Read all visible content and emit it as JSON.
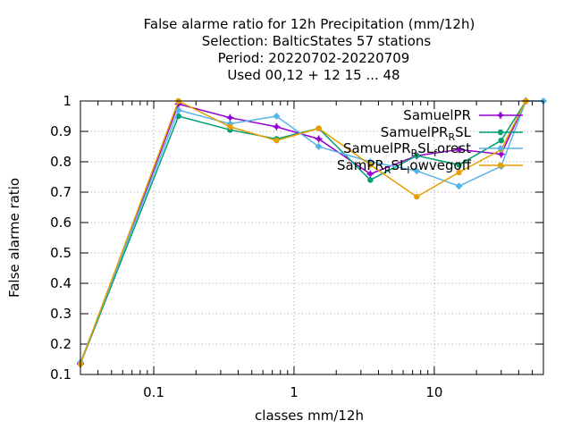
{
  "chart_data": {
    "type": "line",
    "title_lines": [
      "False alarme ratio  for 12h Precipitation (mm/12h)",
      "Selection: BalticStates     57 stations",
      "Period: 20220702-20220709",
      "Used  00,12  + 12 15 ... 48"
    ],
    "xlabel": "classes mm/12h",
    "ylabel": "False alarme ratio",
    "xscale": "log",
    "xlim": [
      0.03,
      60
    ],
    "ylim": [
      0.1,
      1.0
    ],
    "xticks": [
      0.1,
      1,
      10
    ],
    "xtick_labels": [
      "0.1",
      "1",
      "10"
    ],
    "yticks": [
      0.1,
      0.2,
      0.3,
      0.4,
      0.5,
      0.6,
      0.7,
      0.8,
      0.9,
      1.0
    ],
    "ytick_labels": [
      "0.1",
      "0.2",
      "0.3",
      "0.4",
      "0.5",
      "0.6",
      "0.7",
      "0.8",
      "0.9",
      "1"
    ],
    "grid": true,
    "legend_position": "top-right",
    "series": [
      {
        "name": "SamuelPR",
        "color": "#9400d3",
        "marker": "plus",
        "x": [
          0.03,
          0.15,
          0.35,
          0.75,
          1.5,
          3.5,
          7.5,
          15,
          30,
          45
        ],
        "y": [
          0.135,
          0.99,
          0.945,
          0.915,
          0.875,
          0.76,
          0.82,
          0.84,
          0.825,
          1.0
        ]
      },
      {
        "name": "SamuelPR_RSL",
        "label_main": "SamuelPR",
        "label_sub": "R",
        "label_tail": "SL",
        "color": "#009e73",
        "marker": "circle",
        "x": [
          0.03,
          0.15,
          0.35,
          0.75,
          1.5,
          3.5,
          7.5,
          15,
          30,
          45
        ],
        "y": [
          0.135,
          0.95,
          0.905,
          0.875,
          0.91,
          0.74,
          0.82,
          0.79,
          0.87,
          1.0
        ]
      },
      {
        "name": "SamuelPR_RSL_forest",
        "label_main": "SamuelPR",
        "label_sub": "R",
        "label_mid": "SL",
        "label_sub2": "f",
        "label_tail": "orest",
        "color": "#56b4e9",
        "marker": "diamond",
        "x": [
          0.03,
          0.15,
          0.35,
          0.75,
          1.5,
          3.5,
          7.5,
          15,
          30,
          45,
          60
        ],
        "y": [
          0.14,
          0.97,
          0.925,
          0.95,
          0.85,
          0.8,
          0.77,
          0.72,
          0.785,
          1.0,
          1.0
        ]
      },
      {
        "name": "SamPR_RSL_lowvegoff",
        "label_main": "SamPR",
        "label_sub": "R",
        "label_mid": "SL",
        "label_sub2": "l",
        "label_tail": "owvegoff",
        "color": "#e69f00",
        "marker": "circle",
        "x": [
          0.03,
          0.15,
          0.35,
          0.75,
          1.5,
          3.5,
          7.5,
          15,
          30,
          45
        ],
        "y": [
          0.135,
          1.0,
          0.915,
          0.87,
          0.91,
          0.79,
          0.685,
          0.765,
          0.84,
          1.0
        ]
      }
    ]
  }
}
